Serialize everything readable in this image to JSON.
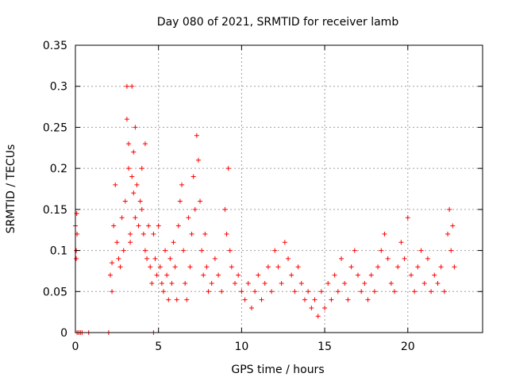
{
  "chart_data": {
    "type": "scatter",
    "title": "Day 080 of 2021, SRMTID for receiver lamb",
    "xlabel": "GPS time / hours",
    "ylabel": "SRMTID / TECUs",
    "xlim": [
      0,
      24.5
    ],
    "ylim": [
      0,
      0.35
    ],
    "x_ticks": [
      0,
      5,
      10,
      15,
      20
    ],
    "x_tick_labels": [
      "0",
      "5",
      "10",
      "15",
      "20"
    ],
    "y_ticks": [
      0,
      0.05,
      0.1,
      0.15,
      0.2,
      0.25,
      0.3,
      0.35
    ],
    "y_tick_labels": [
      "0",
      "0.05",
      "0.1",
      "0.15",
      "0.2",
      "0.25",
      "0.3",
      "0.35"
    ],
    "grid": true,
    "marker": "+",
    "series": [
      {
        "name": "SRMTID",
        "color": "#ff0000",
        "points": [
          [
            0.0,
            0.13
          ],
          [
            0.05,
            0.1
          ],
          [
            0.05,
            0.09
          ],
          [
            0.08,
            0.145
          ],
          [
            0.1,
            0.12
          ],
          [
            0.1,
            0.0
          ],
          [
            0.2,
            0.0
          ],
          [
            0.3,
            0.0
          ],
          [
            0.4,
            0.0
          ],
          [
            0.8,
            0.0
          ],
          [
            2.0,
            0.0
          ],
          [
            4.7,
            0.0
          ],
          [
            2.1,
            0.07
          ],
          [
            2.2,
            0.085
          ],
          [
            2.2,
            0.05
          ],
          [
            2.3,
            0.13
          ],
          [
            2.4,
            0.18
          ],
          [
            2.5,
            0.11
          ],
          [
            2.6,
            0.09
          ],
          [
            2.7,
            0.08
          ],
          [
            2.8,
            0.14
          ],
          [
            2.9,
            0.1
          ],
          [
            3.0,
            0.16
          ],
          [
            3.1,
            0.3
          ],
          [
            3.1,
            0.26
          ],
          [
            3.2,
            0.23
          ],
          [
            3.2,
            0.2
          ],
          [
            3.3,
            0.12
          ],
          [
            3.3,
            0.11
          ],
          [
            3.4,
            0.3
          ],
          [
            3.4,
            0.19
          ],
          [
            3.5,
            0.22
          ],
          [
            3.5,
            0.17
          ],
          [
            3.6,
            0.25
          ],
          [
            3.6,
            0.14
          ],
          [
            3.7,
            0.18
          ],
          [
            3.8,
            0.13
          ],
          [
            3.9,
            0.16
          ],
          [
            4.0,
            0.2
          ],
          [
            4.0,
            0.15
          ],
          [
            4.1,
            0.12
          ],
          [
            4.2,
            0.23
          ],
          [
            4.2,
            0.1
          ],
          [
            4.3,
            0.09
          ],
          [
            4.4,
            0.13
          ],
          [
            4.5,
            0.08
          ],
          [
            4.6,
            0.06
          ],
          [
            4.7,
            0.12
          ],
          [
            4.8,
            0.09
          ],
          [
            4.9,
            0.07
          ],
          [
            5.0,
            0.13
          ],
          [
            5.1,
            0.08
          ],
          [
            5.2,
            0.06
          ],
          [
            5.3,
            0.05
          ],
          [
            5.4,
            0.1
          ],
          [
            5.5,
            0.07
          ],
          [
            5.6,
            0.04
          ],
          [
            5.7,
            0.09
          ],
          [
            5.8,
            0.06
          ],
          [
            5.9,
            0.11
          ],
          [
            6.0,
            0.08
          ],
          [
            6.1,
            0.04
          ],
          [
            6.2,
            0.13
          ],
          [
            6.3,
            0.16
          ],
          [
            6.4,
            0.18
          ],
          [
            6.5,
            0.1
          ],
          [
            6.6,
            0.06
          ],
          [
            6.7,
            0.04
          ],
          [
            6.8,
            0.14
          ],
          [
            6.9,
            0.08
          ],
          [
            7.0,
            0.12
          ],
          [
            7.1,
            0.19
          ],
          [
            7.2,
            0.15
          ],
          [
            7.3,
            0.24
          ],
          [
            7.4,
            0.21
          ],
          [
            7.5,
            0.16
          ],
          [
            7.6,
            0.1
          ],
          [
            7.7,
            0.07
          ],
          [
            7.8,
            0.12
          ],
          [
            7.9,
            0.08
          ],
          [
            8.0,
            0.05
          ],
          [
            8.2,
            0.06
          ],
          [
            8.4,
            0.09
          ],
          [
            8.6,
            0.07
          ],
          [
            8.8,
            0.05
          ],
          [
            9.0,
            0.15
          ],
          [
            9.1,
            0.12
          ],
          [
            9.2,
            0.2
          ],
          [
            9.3,
            0.1
          ],
          [
            9.4,
            0.08
          ],
          [
            9.6,
            0.06
          ],
          [
            9.8,
            0.07
          ],
          [
            10.0,
            0.05
          ],
          [
            10.2,
            0.04
          ],
          [
            10.4,
            0.06
          ],
          [
            10.6,
            0.03
          ],
          [
            10.8,
            0.05
          ],
          [
            11.0,
            0.07
          ],
          [
            11.2,
            0.04
          ],
          [
            11.4,
            0.06
          ],
          [
            11.6,
            0.08
          ],
          [
            11.8,
            0.05
          ],
          [
            12.0,
            0.1
          ],
          [
            12.2,
            0.08
          ],
          [
            12.4,
            0.06
          ],
          [
            12.6,
            0.11
          ],
          [
            12.8,
            0.09
          ],
          [
            13.0,
            0.07
          ],
          [
            13.2,
            0.05
          ],
          [
            13.4,
            0.08
          ],
          [
            13.6,
            0.06
          ],
          [
            13.8,
            0.04
          ],
          [
            14.0,
            0.05
          ],
          [
            14.2,
            0.03
          ],
          [
            14.4,
            0.04
          ],
          [
            14.6,
            0.02
          ],
          [
            14.8,
            0.05
          ],
          [
            15.0,
            0.03
          ],
          [
            15.2,
            0.06
          ],
          [
            15.4,
            0.04
          ],
          [
            15.6,
            0.07
          ],
          [
            15.8,
            0.05
          ],
          [
            16.0,
            0.09
          ],
          [
            16.2,
            0.06
          ],
          [
            16.4,
            0.04
          ],
          [
            16.6,
            0.08
          ],
          [
            16.8,
            0.1
          ],
          [
            17.0,
            0.07
          ],
          [
            17.2,
            0.05
          ],
          [
            17.4,
            0.06
          ],
          [
            17.6,
            0.04
          ],
          [
            17.8,
            0.07
          ],
          [
            18.0,
            0.05
          ],
          [
            18.2,
            0.08
          ],
          [
            18.4,
            0.1
          ],
          [
            18.6,
            0.12
          ],
          [
            18.8,
            0.09
          ],
          [
            19.0,
            0.06
          ],
          [
            19.2,
            0.05
          ],
          [
            19.4,
            0.08
          ],
          [
            19.6,
            0.11
          ],
          [
            19.8,
            0.09
          ],
          [
            20.0,
            0.14
          ],
          [
            20.2,
            0.07
          ],
          [
            20.4,
            0.05
          ],
          [
            20.6,
            0.08
          ],
          [
            20.8,
            0.1
          ],
          [
            21.0,
            0.06
          ],
          [
            21.2,
            0.09
          ],
          [
            21.4,
            0.05
          ],
          [
            21.6,
            0.07
          ],
          [
            21.8,
            0.06
          ],
          [
            22.0,
            0.08
          ],
          [
            22.2,
            0.05
          ],
          [
            22.4,
            0.12
          ],
          [
            22.5,
            0.15
          ],
          [
            22.6,
            0.1
          ],
          [
            22.7,
            0.13
          ],
          [
            22.8,
            0.08
          ]
        ]
      }
    ]
  }
}
